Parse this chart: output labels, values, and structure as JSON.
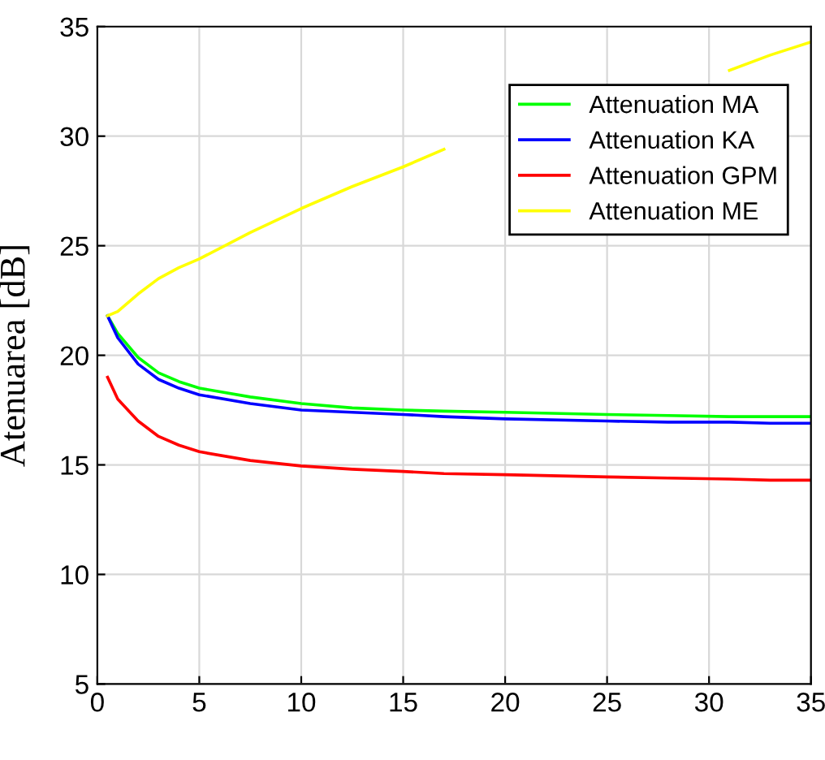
{
  "chart_data": {
    "type": "line",
    "ylabel": "Atenuarea [dB]",
    "x": [
      0.5,
      1,
      2,
      3,
      4,
      5,
      7.5,
      10,
      12.5,
      15,
      17,
      20,
      25,
      28,
      31,
      33,
      35
    ],
    "series": [
      {
        "name": "Attenuation MA",
        "color": "#00ff00",
        "values": [
          21.8,
          21.0,
          19.9,
          19.2,
          18.8,
          18.5,
          18.1,
          17.8,
          17.6,
          17.5,
          17.45,
          17.4,
          17.3,
          17.25,
          17.2,
          17.2,
          17.2
        ]
      },
      {
        "name": "Attenuation KA",
        "color": "#0000ff",
        "values": [
          21.8,
          20.8,
          19.6,
          18.9,
          18.5,
          18.2,
          17.8,
          17.5,
          17.4,
          17.3,
          17.2,
          17.1,
          17.0,
          16.95,
          16.95,
          16.9,
          16.9
        ]
      },
      {
        "name": "Attenuation GPM",
        "color": "#ff0000",
        "values": [
          19.0,
          18.0,
          17.0,
          16.3,
          15.9,
          15.6,
          15.2,
          14.95,
          14.8,
          14.7,
          14.6,
          14.55,
          14.45,
          14.4,
          14.35,
          14.3,
          14.3
        ]
      },
      {
        "name": "Attenuation ME",
        "color": "#ffff00",
        "values": [
          21.8,
          22.0,
          22.8,
          23.5,
          24.0,
          24.4,
          25.6,
          26.7,
          27.7,
          28.6,
          29.4,
          null,
          null,
          null,
          33.0,
          33.7,
          34.3
        ]
      }
    ],
    "xlim": [
      0,
      35
    ],
    "xticks": [
      0,
      5,
      10,
      15,
      20,
      25,
      30,
      35
    ],
    "ylim": [
      5,
      35
    ],
    "yticks": [
      5,
      10,
      15,
      20,
      25,
      30,
      35
    ],
    "grid": true,
    "legend": "top right",
    "line_style": "solid",
    "marker": "none"
  }
}
